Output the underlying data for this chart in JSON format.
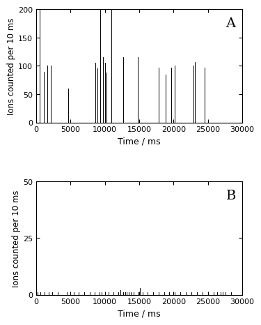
{
  "panel_A": {
    "label": "A",
    "xlim": [
      0,
      30000
    ],
    "ylim": [
      0,
      200
    ],
    "yticks": [
      0,
      50,
      100,
      150,
      200
    ],
    "xticks": [
      0,
      5000,
      10000,
      15000,
      20000,
      25000,
      30000
    ],
    "xlabel": "Time / ms",
    "ylabel": "Ions counted per 10 ms",
    "spikes": [
      [
        500,
        200
      ],
      [
        1100,
        90
      ],
      [
        1600,
        100
      ],
      [
        2200,
        100
      ],
      [
        4700,
        60
      ],
      [
        8600,
        105
      ],
      [
        8900,
        95
      ],
      [
        9300,
        200
      ],
      [
        9700,
        115
      ],
      [
        10000,
        105
      ],
      [
        10200,
        88
      ],
      [
        11000,
        200
      ],
      [
        12700,
        115
      ],
      [
        14800,
        115
      ],
      [
        17800,
        97
      ],
      [
        18800,
        85
      ],
      [
        19700,
        97
      ],
      [
        20200,
        100
      ],
      [
        22900,
        100
      ],
      [
        23100,
        107
      ],
      [
        24500,
        97
      ]
    ]
  },
  "panel_B": {
    "label": "B",
    "xlim": [
      0,
      30000
    ],
    "ylim": [
      0,
      50
    ],
    "yticks": [
      0,
      25,
      50
    ],
    "xticks": [
      0,
      5000,
      10000,
      15000,
      20000,
      25000,
      30000
    ],
    "xlabel": "Time / ms",
    "ylabel": "Ions counted per 10 ms",
    "noise_x": [
      200,
      600,
      1200,
      1800,
      2400,
      3200,
      4500,
      5500,
      6200,
      7000,
      7800,
      8500,
      9200,
      9500,
      10000,
      10600,
      11300,
      12000,
      12300,
      12700,
      13000,
      13200,
      13500,
      13800,
      14200,
      14800,
      15100,
      15500,
      16200,
      17000,
      17800,
      18600,
      19400,
      20200,
      21000,
      21800,
      22600,
      23400,
      24200,
      25000,
      25800,
      26300,
      26800,
      27200,
      27600,
      28400
    ],
    "noise_y": [
      1,
      1,
      1,
      1,
      1,
      1,
      1,
      1,
      1,
      1,
      1,
      1,
      1,
      1,
      1,
      1,
      1,
      1,
      2,
      1,
      1,
      1,
      1,
      1,
      1,
      1,
      3,
      1,
      1,
      1,
      1,
      1,
      1,
      1,
      1,
      1,
      1,
      1,
      1,
      1,
      1,
      1,
      1,
      1,
      1,
      1
    ]
  },
  "line_color": "#000000",
  "bg_color": "#ffffff",
  "tick_fontsize": 8,
  "label_fontsize": 9,
  "panel_label_fontsize": 14
}
